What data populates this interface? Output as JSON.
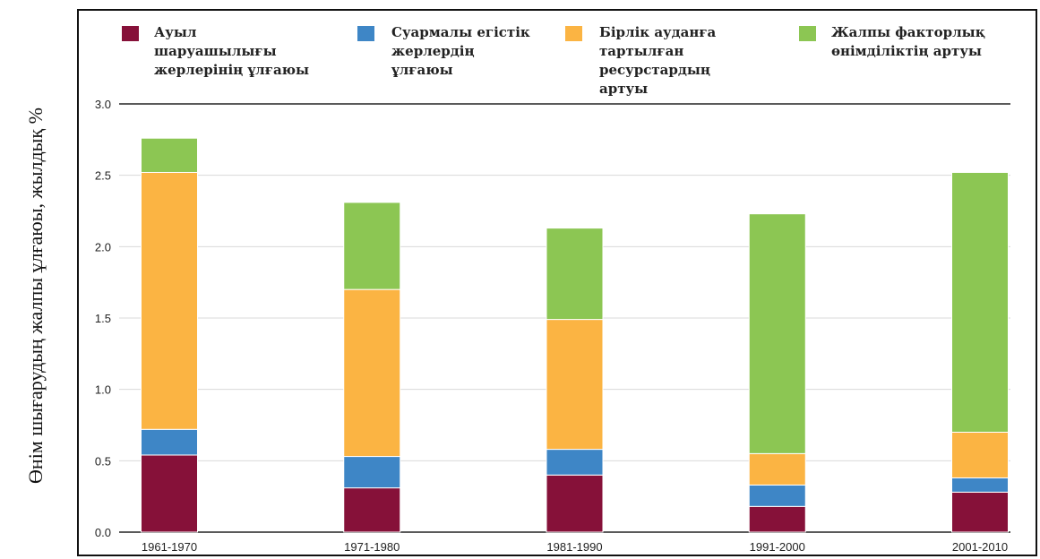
{
  "chart_data": {
    "type": "bar",
    "stacked": true,
    "ylabel": "Өнім шығарудың жалпы ұлғаюы, жылдық %",
    "xlabel": "",
    "ylim": [
      0,
      3.0
    ],
    "yticks": [
      "0.0",
      "0.5",
      "1.0",
      "1.5",
      "2.0",
      "2.5",
      "3.0"
    ],
    "grid": true,
    "legend_position": "top",
    "categories": [
      "1961-1970",
      "1971-1980",
      "1981-1990",
      "1991-2000",
      "2001-2010"
    ],
    "series": [
      {
        "name": "Ауыл шаруашылығы жерлерінің ұлғаюы",
        "color": "#861139",
        "values": [
          0.54,
          0.31,
          0.4,
          0.18,
          0.28
        ]
      },
      {
        "name": "Суармалы егістік жерлердің ұлғаюы",
        "color": "#3e86c6",
        "values": [
          0.18,
          0.22,
          0.18,
          0.15,
          0.1
        ]
      },
      {
        "name": "Бірлік ауданға тартылған ресурстардың артуы",
        "color": "#fbb443",
        "values": [
          1.8,
          1.17,
          0.91,
          0.22,
          0.32
        ]
      },
      {
        "name": "Жалпы факторлық өнімділіктің артуы",
        "color": "#8cc653",
        "values": [
          0.24,
          0.61,
          0.64,
          1.68,
          1.82
        ]
      }
    ]
  },
  "legend": [
    {
      "label": "Ауыл\nшаруашылығы\nжерлерінің ұлғаюы",
      "color": "#861139"
    },
    {
      "label": "Суармалы егістік\nжерлердің\nұлғаюы",
      "color": "#3e86c6"
    },
    {
      "label": "Бірлік ауданға\nтартылған\nресурстардың\nартуы",
      "color": "#fbb443"
    },
    {
      "label": "Жалпы факторлық\nөнімділіктің артуы",
      "color": "#8cc653"
    }
  ]
}
